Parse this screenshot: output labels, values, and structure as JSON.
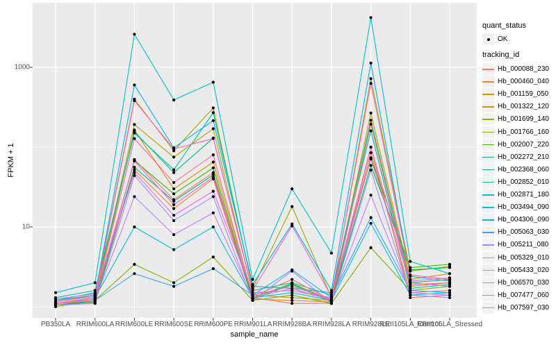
{
  "figure": {
    "background": "#FFFFFF"
  },
  "axes": {
    "y_tick_labels": [
      "1000",
      "10"
    ],
    "x_tick_label_color": "#4D4D4D",
    "tick_mark_color": "#333333"
  },
  "legend": {
    "quant_status": {
      "title": "quant_status",
      "entries": [
        {
          "label": "OK",
          "marker": "point",
          "color": "#000000"
        }
      ]
    },
    "tracking_id": {
      "title": "tracking_id",
      "entries": [
        {
          "label": "Hb_000088_230",
          "color": "#F8766D"
        },
        {
          "label": "Hb_000460_040",
          "color": "#EA8331"
        },
        {
          "label": "Hb_001159_050",
          "color": "#D89000"
        },
        {
          "label": "Hb_001322_120",
          "color": "#C09B00"
        },
        {
          "label": "Hb_001699_140",
          "color": "#A3A500"
        },
        {
          "label": "Hb_001766_160",
          "color": "#7CAE00"
        },
        {
          "label": "Hb_002007_220",
          "color": "#39B600"
        },
        {
          "label": "Hb_002272_210",
          "color": "#00BB4E"
        },
        {
          "label": "Hb_002368_060",
          "color": "#00BF7D"
        },
        {
          "label": "Hb_002852_010",
          "color": "#00C1A3"
        },
        {
          "label": "Hb_002871_180",
          "color": "#00BFC4"
        },
        {
          "label": "Hb_003494_090",
          "color": "#00BAE0"
        },
        {
          "label": "Hb_004306_090",
          "color": "#00B0F6"
        },
        {
          "label": "Hb_005063_030",
          "color": "#35A2FF"
        },
        {
          "label": "Hb_005211_080",
          "color": "#9590FF"
        },
        {
          "label": "Hb_005329_010",
          "color": "#C77CFF"
        },
        {
          "label": "Hb_005433_020",
          "color": "#E76BF3"
        },
        {
          "label": "Hb_006570_030",
          "color": "#FA62DB"
        },
        {
          "label": "Hb_007477_060",
          "color": "#FF62BC"
        },
        {
          "label": "Hb_007597_030",
          "color": "#FF6A98"
        }
      ]
    }
  },
  "chart_data": {
    "type": "line",
    "title": "",
    "xlabel": "sample_name",
    "ylabel": "FPKM + 1",
    "y_scale": "log10",
    "y_ticks": [
      10,
      1000
    ],
    "y_minor_gridlines": [
      1,
      100
    ],
    "ylim": [
      0.75,
      6500
    ],
    "grid": true,
    "legend_position": "right",
    "panel_bg": "#EBEBEB",
    "grid_color": "#FFFFFF",
    "point_color": "#000000",
    "categories": [
      "PB350LA",
      "RRIM600LA",
      "RRIM600LE",
      "RRIM600SE",
      "RRIM600PE",
      "RRIM901LA",
      "RRIM928BA",
      "RRIM928LA",
      "RRIM928LE",
      "RRII105LA_Control",
      "RRII105LA_Stressed"
    ],
    "series": [
      {
        "name": "Hb_000088_230",
        "color": "#F8766D",
        "values": [
          1.05,
          1.1,
          70,
          22,
          48,
          1.3,
          1.1,
          1.1,
          100,
          1.3,
          1.4
        ]
      },
      {
        "name": "Hb_000460_040",
        "color": "#EA8331",
        "values": [
          1.1,
          1.15,
          52,
          17,
          40,
          1.25,
          1.2,
          1.15,
          85,
          1.5,
          1.6
        ]
      },
      {
        "name": "Hb_001159_050",
        "color": "#D89000",
        "values": [
          1.0,
          1.2,
          164,
          30,
          65,
          1.4,
          1.3,
          1.2,
          194,
          1.8,
          2.0
        ]
      },
      {
        "name": "Hb_001322_120",
        "color": "#C09B00",
        "values": [
          1.1,
          1.3,
          192,
          75,
          170,
          1.5,
          1.6,
          1.25,
          268,
          2.2,
          2.6
        ]
      },
      {
        "name": "Hb_001699_140",
        "color": "#A3A500",
        "values": [
          1.15,
          1.4,
          400,
          90,
          310,
          1.7,
          18,
          1.3,
          720,
          2.8,
          3.2
        ]
      },
      {
        "name": "Hb_001766_160",
        "color": "#7CAE00",
        "values": [
          1.05,
          1.2,
          3.4,
          2.0,
          4.2,
          1.2,
          1.4,
          1.1,
          5.5,
          1.6,
          1.8
        ]
      },
      {
        "name": "Hb_002007_220",
        "color": "#39B600",
        "values": [
          1.1,
          1.25,
          68,
          26,
          55,
          1.3,
          1.95,
          1.2,
          73.5,
          3.1,
          3.4
        ]
      },
      {
        "name": "Hb_002272_210",
        "color": "#00BB4E",
        "values": [
          1.05,
          1.15,
          56,
          21,
          45,
          1.25,
          1.9,
          1.15,
          59,
          2.9,
          3.1
        ]
      },
      {
        "name": "Hb_002368_060",
        "color": "#00BF7D",
        "values": [
          1.2,
          1.5,
          156,
          48,
          130,
          1.6,
          2.0,
          1.4,
          217,
          2.0,
          2.2
        ]
      },
      {
        "name": "Hb_002852_010",
        "color": "#00C1A3",
        "values": [
          1.3,
          1.6,
          150,
          52,
          270,
          1.8,
          1.7,
          1.5,
          160,
          1.7,
          1.9
        ]
      },
      {
        "name": "Hb_002871_180",
        "color": "#00BFC4",
        "values": [
          1.5,
          2.0,
          2600,
          390,
          650,
          2.2,
          30,
          4.7,
          4200,
          3.7,
          2.6
        ]
      },
      {
        "name": "Hb_003494_090",
        "color": "#00BAE0",
        "values": [
          1.1,
          1.3,
          10,
          5.2,
          10,
          1.3,
          1.5,
          1.2,
          11.1,
          1.4,
          1.5
        ]
      },
      {
        "name": "Hb_004306_090",
        "color": "#00B0F6",
        "values": [
          1.2,
          1.4,
          600,
          98,
          215,
          1.9,
          10.9,
          1.6,
          1130,
          2.4,
          2.1
        ]
      },
      {
        "name": "Hb_005063_030",
        "color": "#35A2FF",
        "values": [
          1.1,
          1.2,
          2.6,
          1.8,
          3.0,
          1.4,
          2.9,
          1.3,
          13.1,
          1.6,
          1.5
        ]
      },
      {
        "name": "Hb_005211_080",
        "color": "#9590FF",
        "values": [
          1.05,
          1.1,
          44,
          12,
          24,
          1.2,
          2.8,
          1.1,
          51.5,
          1.4,
          1.3
        ]
      },
      {
        "name": "Hb_005329_010",
        "color": "#C77CFF",
        "values": [
          1.1,
          1.2,
          24,
          8,
          15,
          1.3,
          1.7,
          1.2,
          25,
          1.5,
          1.4
        ]
      },
      {
        "name": "Hb_005433_020",
        "color": "#E76BF3",
        "values": [
          1.25,
          1.45,
          48,
          14,
          28,
          1.5,
          1.6,
          1.3,
          71,
          2.0,
          1.8
        ]
      },
      {
        "name": "Hb_006570_030",
        "color": "#FA62DB",
        "values": [
          1.1,
          1.3,
          67,
          19,
          42,
          1.4,
          1.8,
          1.25,
          100,
          2.1,
          2.3
        ]
      },
      {
        "name": "Hb_007477_060",
        "color": "#FF62BC",
        "values": [
          1.15,
          1.35,
          382,
          95,
          128,
          1.6,
          10.3,
          1.35,
          630,
          2.5,
          2.2
        ]
      },
      {
        "name": "Hb_007597_030",
        "color": "#FF6A98",
        "values": [
          1.1,
          1.25,
          128,
          36,
          80,
          1.35,
          2.2,
          1.2,
          194,
          1.9,
          2.0
        ]
      }
    ]
  }
}
